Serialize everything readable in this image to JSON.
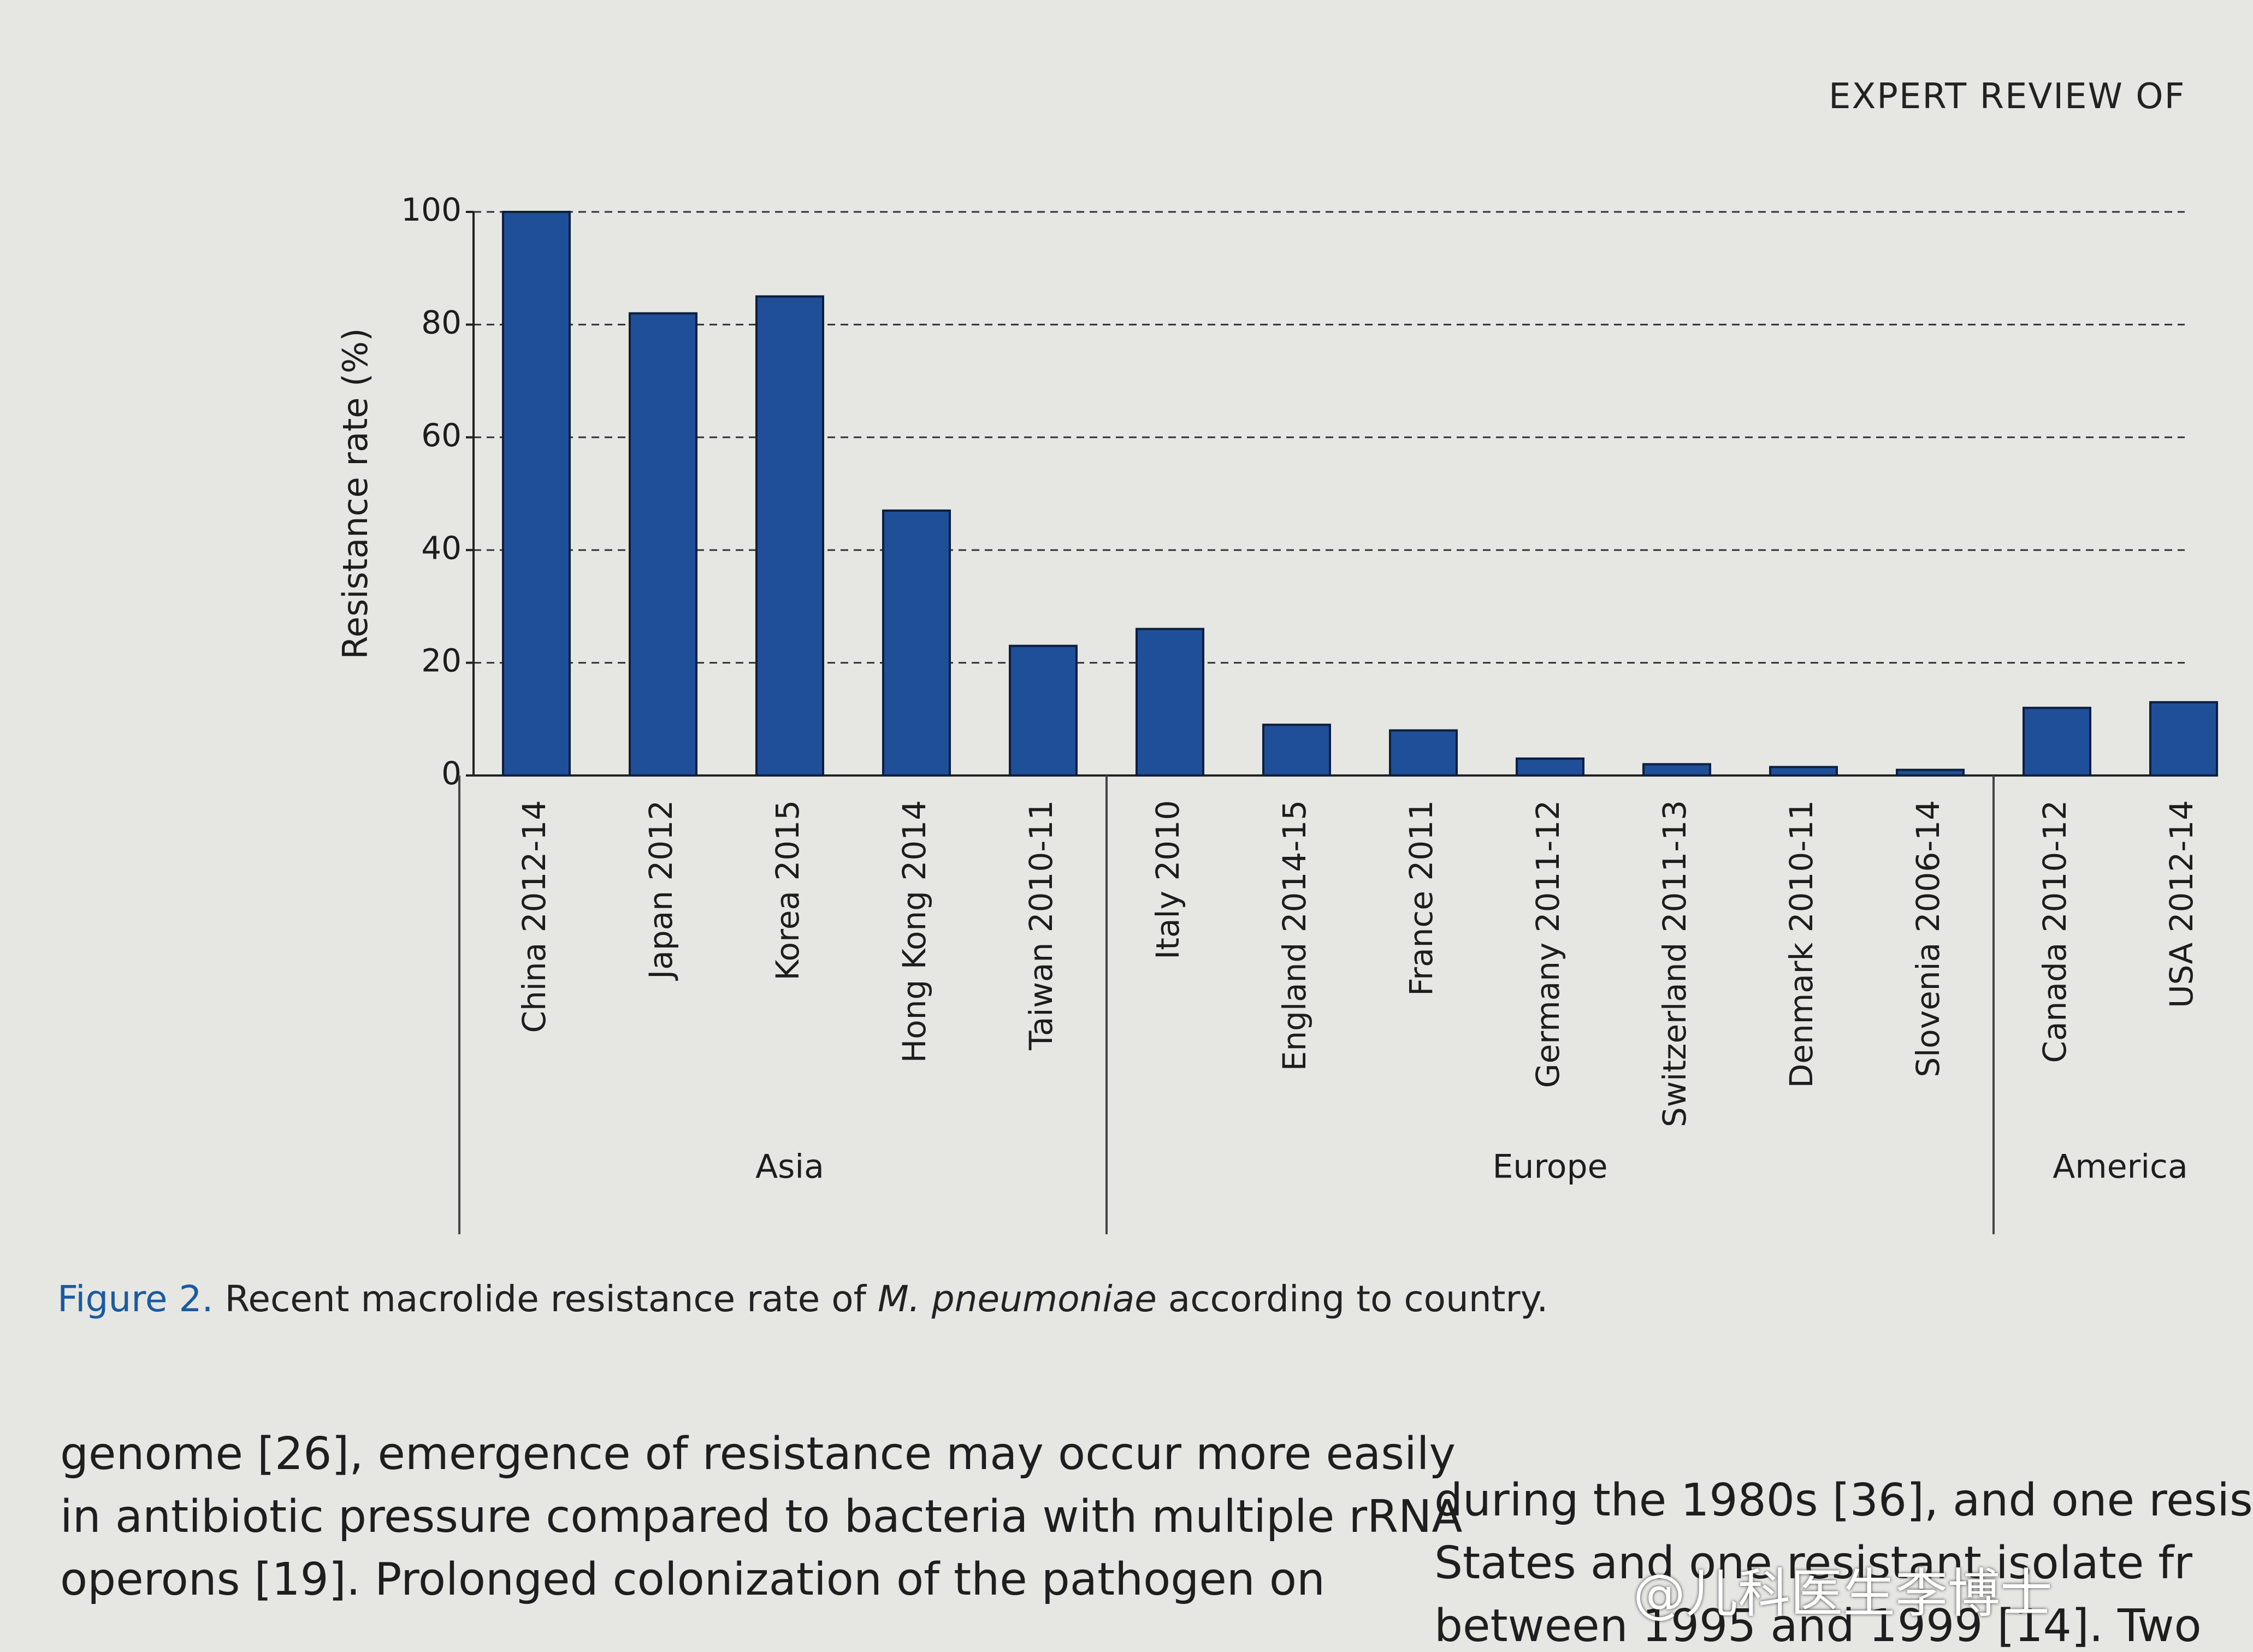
{
  "header": {
    "text": "EXPERT REVIEW OF"
  },
  "chart_data": {
    "type": "bar",
    "y_label": "Resistance rate (%)",
    "categories": [
      "China 2012-14",
      "Japan 2012",
      "Korea 2015",
      "Hong Kong 2014",
      "Taiwan 2010-11",
      "Italy 2010",
      "England 2014-15",
      "France 2011",
      "Germany 2011-12",
      "Switzerland 2011-13",
      "Denmark 2010-11",
      "Slovenia 2006-14",
      "Canada 2010-12",
      "USA 2012-14"
    ],
    "values": [
      100,
      82,
      85,
      47,
      23,
      26,
      9,
      8,
      3,
      2,
      1.5,
      1,
      12,
      13
    ],
    "color": "#1f4f98",
    "ylim": [
      0,
      100
    ],
    "yticks": [
      0,
      20,
      40,
      60,
      80,
      100
    ],
    "grid": true,
    "groups": [
      {
        "label": "Asia",
        "count": 5
      },
      {
        "label": "Europe",
        "count": 7
      },
      {
        "label": "America",
        "count": 2
      }
    ]
  },
  "caption": {
    "figure": "Figure 2.",
    "text_before": "Recent macrolide resistance rate of",
    "species": "M. pneumoniae",
    "text_after": "according to country."
  },
  "body": {
    "left": [
      "genome [26], emergence of resistance may occur more easily",
      "in antibiotic pressure compared to bacteria with multiple rRNA",
      "operons [19]. Prolonged colonization of the pathogen on"
    ],
    "right": [
      "during the 1980s [36], and one resis",
      "States and one resistant isolate fr",
      "between 1995 and 1999 [14]. Two"
    ]
  },
  "watermark": "@儿科医生李博士"
}
